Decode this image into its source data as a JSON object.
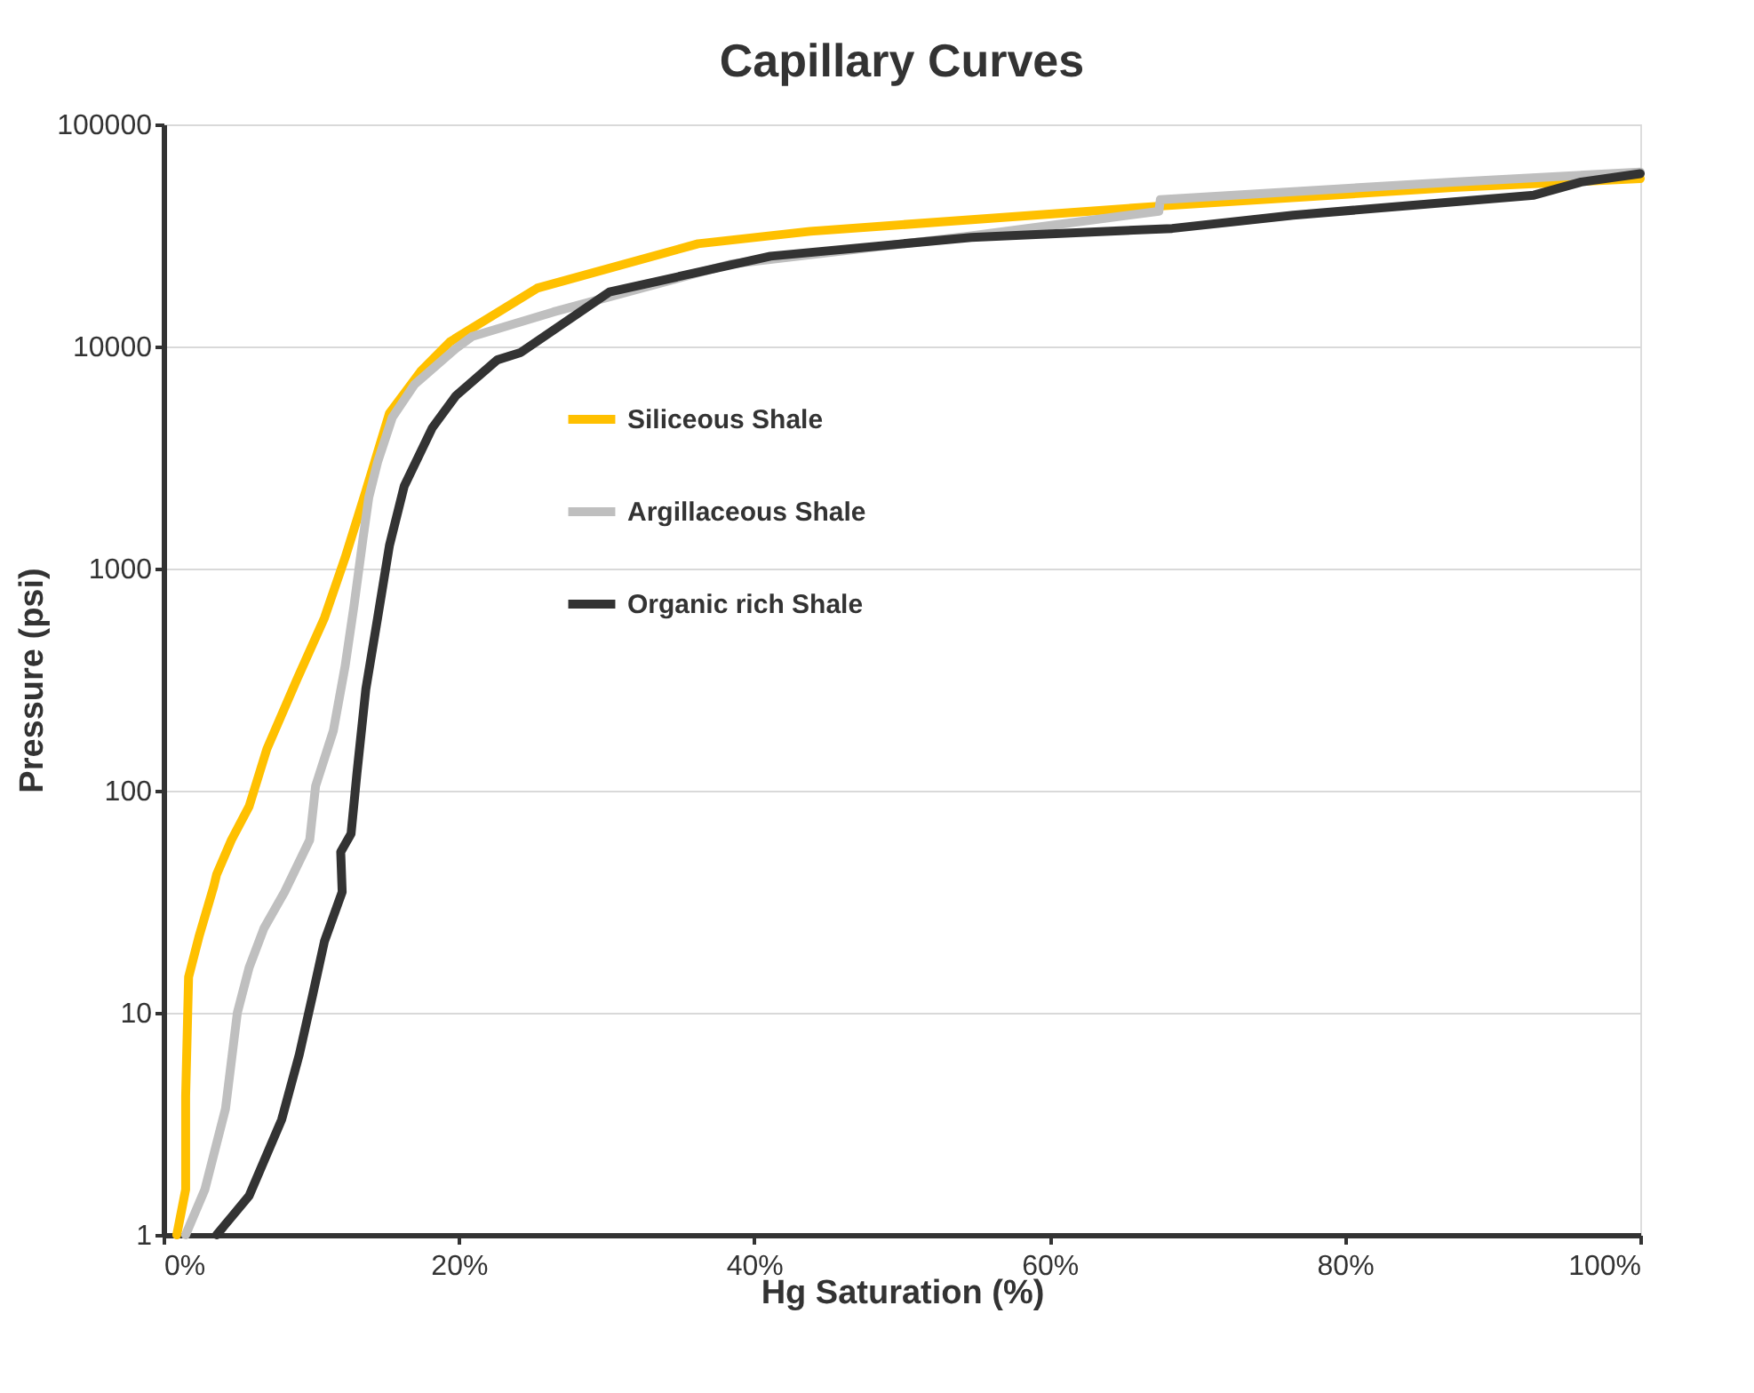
{
  "chart_data": {
    "type": "line",
    "title": "Capillary Curves",
    "xlabel": "Hg Saturation (%)",
    "ylabel": "Pressure (psi)",
    "log": "y",
    "grid": "y",
    "legend": "center",
    "marker": "none",
    "line_style": "solid",
    "xlim": [
      0,
      100
    ],
    "xticks": [
      {
        "value": 0,
        "label": "0%"
      },
      {
        "value": 20,
        "label": "20%"
      },
      {
        "value": 40,
        "label": "40%"
      },
      {
        "value": 60,
        "label": "60%"
      },
      {
        "value": 80,
        "label": "80%"
      },
      {
        "value": 100,
        "label": "100%"
      }
    ],
    "ylim": [
      1,
      100000
    ],
    "yticks": [
      1,
      10,
      100,
      1000,
      10000,
      100000
    ],
    "series": [
      {
        "name": "Siliceous Shale",
        "color": "#ffc000",
        "x": [
          0.9,
          1.5,
          1.5,
          1.7,
          2.4,
          3.4,
          3.6,
          4.6,
          5.8,
          7.0,
          9.1,
          10.9,
          12.3,
          13.7,
          15.3,
          17.4,
          19.4,
          25.3,
          36.2,
          43.8,
          67.8,
          87.3,
          100
        ],
        "values": [
          1,
          1.6,
          4.2,
          14.5,
          22,
          37,
          42,
          60,
          85,
          154,
          324,
          600,
          1120,
          2230,
          5000,
          7700,
          10500,
          18300,
          29000,
          33000,
          43000,
          52000,
          57000
        ]
      },
      {
        "name": "Argillaceous Shale",
        "color": "#bfbfbf",
        "x": [
          1.5,
          2.8,
          4.2,
          5.0,
          5.8,
          6.8,
          8.2,
          9.9,
          10.3,
          11.5,
          12.3,
          12.9,
          13.5,
          13.9,
          14.5,
          15.5,
          17.0,
          19.8,
          20.9,
          26.4,
          38.4,
          54.7,
          67.4,
          67.5,
          87.3,
          100
        ],
        "values": [
          1,
          1.6,
          3.7,
          10,
          16,
          24,
          35,
          60,
          105,
          186,
          364,
          680,
          1350,
          2090,
          3020,
          4800,
          6750,
          9800,
          11100,
          14300,
          23500,
          31500,
          40600,
          45800,
          55000,
          61000
        ]
      },
      {
        "name": "Organic rich Shale",
        "color": "#333333",
        "x": [
          3.6,
          5.8,
          8.0,
          9.2,
          10.1,
          10.9,
          12.1,
          12.0,
          12.7,
          13.1,
          13.7,
          14.5,
          15.3,
          16.3,
          18.2,
          19.8,
          22.6,
          24.2,
          30.2,
          41.1,
          54.7,
          68.3,
          76.5,
          92.8,
          96,
          100
        ],
        "values": [
          1,
          1.5,
          3.3,
          6.5,
          12,
          21,
          35,
          53,
          64,
          120,
          286,
          600,
          1270,
          2350,
          4300,
          6000,
          8700,
          9400,
          17600,
          25500,
          31000,
          34000,
          39000,
          48000,
          55000,
          60000
        ]
      }
    ]
  }
}
